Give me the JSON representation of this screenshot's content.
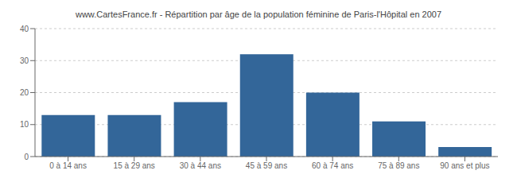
{
  "chart_data": {
    "type": "bar",
    "title": "www.CartesFrance.fr - Répartition par âge de la population féminine de Paris-l'Hôpital en 2007",
    "categories": [
      "0 à 14 ans",
      "15 à 29 ans",
      "30 à 44 ans",
      "45 à 59 ans",
      "60 à 74 ans",
      "75 à 89 ans",
      "90 ans et plus"
    ],
    "values": [
      13,
      13,
      17,
      32,
      20,
      11,
      3
    ],
    "color": "#336699",
    "ylim": [
      0,
      40
    ],
    "yticks": [
      0,
      10,
      20,
      30,
      40
    ],
    "grid": true
  }
}
